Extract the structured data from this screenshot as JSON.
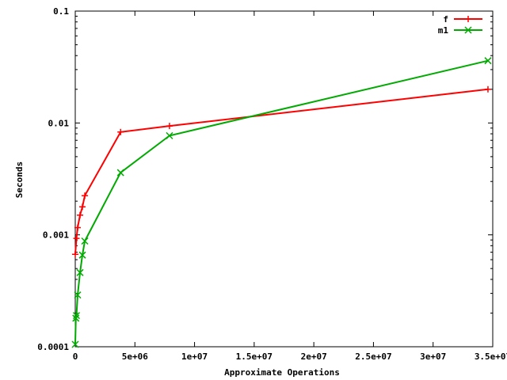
{
  "chart_data": {
    "type": "line",
    "title": "",
    "xlabel": "Approximate Operations",
    "ylabel": "Seconds",
    "x_scale": "linear",
    "y_scale": "log",
    "xlim": [
      0,
      35000000
    ],
    "ylim": [
      0.0001,
      0.1
    ],
    "grid": false,
    "legend_position": "top-right",
    "x_ticks": [
      0,
      5000000,
      10000000,
      15000000,
      20000000,
      25000000,
      30000000,
      35000000
    ],
    "x_tick_labels": [
      "0",
      "5e+06",
      "1e+07",
      "1.5e+07",
      "2e+07",
      "2.5e+07",
      "3e+07",
      "3.5e+07"
    ],
    "y_ticks": [
      0.0001,
      0.001,
      0.01,
      0.1
    ],
    "y_tick_labels": [
      "0.0001",
      "0.001",
      "0.01",
      "0.1"
    ],
    "series": [
      {
        "name": "f",
        "color": "#ff0000",
        "marker": "plus",
        "x": [
          0,
          100000,
          200000,
          400000,
          600000,
          800000,
          3800000,
          7900000,
          34600000
        ],
        "y": [
          0.00067,
          0.00093,
          0.00116,
          0.0015,
          0.00178,
          0.00224,
          0.0083,
          0.0094,
          0.02
        ]
      },
      {
        "name": "m1",
        "color": "#00aa00",
        "marker": "cross",
        "x": [
          0,
          50000,
          100000,
          200000,
          400000,
          600000,
          800000,
          3800000,
          7900000,
          34600000
        ],
        "y": [
          0.000105,
          0.00018,
          0.00019,
          0.00029,
          0.00046,
          0.00066,
          0.00088,
          0.0036,
          0.0077,
          0.036
        ]
      }
    ]
  }
}
